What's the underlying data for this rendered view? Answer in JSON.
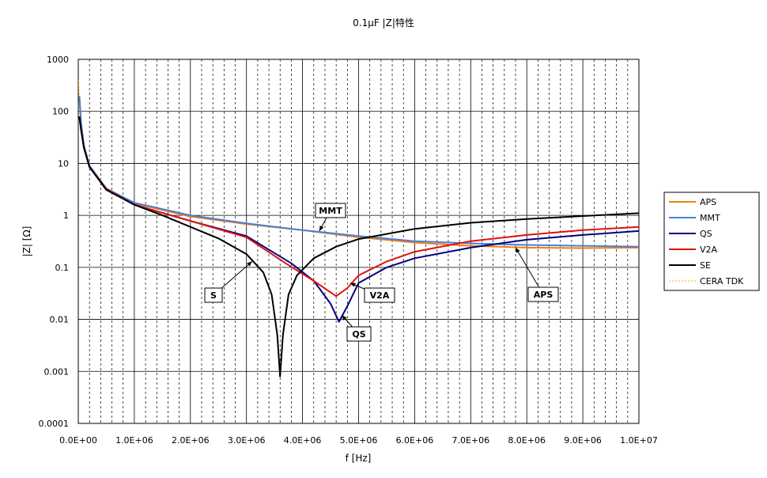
{
  "chart_data": {
    "type": "line",
    "title": "0.1μF |Z|特性",
    "xlabel": "f [Hz]",
    "ylabel": "|Z| [Ω]",
    "xscale": "linear",
    "yscale": "log",
    "xlim": [
      0,
      10000000
    ],
    "ylim": [
      0.0001,
      1000
    ],
    "x_ticks": [
      "0.0E+00",
      "1.0E+06",
      "2.0E+06",
      "3.0E+06",
      "4.0E+06",
      "5.0E+06",
      "6.0E+06",
      "7.0E+06",
      "8.0E+06",
      "9.0E+06",
      "1.0E+07"
    ],
    "y_ticks": [
      "1000",
      "100",
      "10",
      "1",
      "0.1",
      "0.01",
      "0.001",
      "0.0001"
    ],
    "grid": "on",
    "legend_position": "right",
    "series": [
      {
        "name": "APS",
        "color": "#f07e0e",
        "dashed": false,
        "points": [
          [
            20000,
            200
          ],
          [
            50000,
            60
          ],
          [
            100000,
            22
          ],
          [
            200000,
            9
          ],
          [
            500000,
            3.3
          ],
          [
            1000000,
            1.7
          ],
          [
            2000000,
            0.95
          ],
          [
            3000000,
            0.68
          ],
          [
            4000000,
            0.52
          ],
          [
            5000000,
            0.38
          ],
          [
            6000000,
            0.3
          ],
          [
            7000000,
            0.26
          ],
          [
            8000000,
            0.24
          ],
          [
            9000000,
            0.235
          ],
          [
            10000000,
            0.24
          ]
        ]
      },
      {
        "name": "MMT",
        "color": "#4a7fd9",
        "dashed": false,
        "points": [
          [
            20000,
            190
          ],
          [
            50000,
            60
          ],
          [
            100000,
            22
          ],
          [
            200000,
            9
          ],
          [
            500000,
            3.3
          ],
          [
            1000000,
            1.75
          ],
          [
            2000000,
            1.0
          ],
          [
            3000000,
            0.7
          ],
          [
            4000000,
            0.52
          ],
          [
            5000000,
            0.4
          ],
          [
            6000000,
            0.32
          ],
          [
            7000000,
            0.29
          ],
          [
            8000000,
            0.27
          ],
          [
            9000000,
            0.26
          ],
          [
            10000000,
            0.25
          ]
        ]
      },
      {
        "name": "QS",
        "color": "#000080",
        "dashed": false,
        "points": [
          [
            20000,
            80
          ],
          [
            50000,
            45
          ],
          [
            100000,
            20
          ],
          [
            200000,
            8.5
          ],
          [
            500000,
            3.2
          ],
          [
            1000000,
            1.6
          ],
          [
            2000000,
            0.78
          ],
          [
            3000000,
            0.4
          ],
          [
            3800000,
            0.12
          ],
          [
            4200000,
            0.055
          ],
          [
            4500000,
            0.02
          ],
          [
            4650000,
            0.009
          ],
          [
            4800000,
            0.018
          ],
          [
            5000000,
            0.05
          ],
          [
            5500000,
            0.1
          ],
          [
            6000000,
            0.15
          ],
          [
            7000000,
            0.24
          ],
          [
            8000000,
            0.34
          ],
          [
            9000000,
            0.42
          ],
          [
            10000000,
            0.5
          ]
        ]
      },
      {
        "name": "V2A",
        "color": "#e01010",
        "dashed": false,
        "points": [
          [
            20000,
            80
          ],
          [
            50000,
            45
          ],
          [
            100000,
            20
          ],
          [
            200000,
            8.5
          ],
          [
            500000,
            3.2
          ],
          [
            1000000,
            1.6
          ],
          [
            2000000,
            0.78
          ],
          [
            3000000,
            0.38
          ],
          [
            3700000,
            0.12
          ],
          [
            4200000,
            0.055
          ],
          [
            4600000,
            0.028
          ],
          [
            4800000,
            0.04
          ],
          [
            5000000,
            0.07
          ],
          [
            5500000,
            0.13
          ],
          [
            6000000,
            0.2
          ],
          [
            7000000,
            0.32
          ],
          [
            8000000,
            0.42
          ],
          [
            9000000,
            0.52
          ],
          [
            10000000,
            0.6
          ]
        ]
      },
      {
        "name": "SE",
        "color": "#000000",
        "dashed": false,
        "points": [
          [
            20000,
            80
          ],
          [
            50000,
            45
          ],
          [
            100000,
            20
          ],
          [
            200000,
            8.5
          ],
          [
            500000,
            3.1
          ],
          [
            1000000,
            1.6
          ],
          [
            1500000,
            1.0
          ],
          [
            2000000,
            0.6
          ],
          [
            2500000,
            0.36
          ],
          [
            3000000,
            0.18
          ],
          [
            3300000,
            0.08
          ],
          [
            3450000,
            0.03
          ],
          [
            3550000,
            0.005
          ],
          [
            3600000,
            0.0008
          ],
          [
            3650000,
            0.005
          ],
          [
            3750000,
            0.03
          ],
          [
            3900000,
            0.07
          ],
          [
            4200000,
            0.15
          ],
          [
            4600000,
            0.25
          ],
          [
            5000000,
            0.35
          ],
          [
            6000000,
            0.55
          ],
          [
            7000000,
            0.72
          ],
          [
            8000000,
            0.85
          ],
          [
            9000000,
            0.97
          ],
          [
            10000000,
            1.1
          ]
        ]
      },
      {
        "name": "CERA TDK",
        "color": "#f5b800",
        "dashed": true,
        "points": [
          [
            5000,
            400
          ],
          [
            20000,
            150
          ],
          [
            50000,
            55
          ],
          [
            100000,
            20
          ]
        ]
      }
    ],
    "annotations": [
      {
        "label": "MMT",
        "point": [
          4300000,
          0.5
        ]
      },
      {
        "label": "S",
        "point": [
          3100000,
          0.13
        ]
      },
      {
        "label": "V2A",
        "point": [
          4850000,
          0.05
        ]
      },
      {
        "label": "QS",
        "point": [
          4700000,
          0.012
        ]
      },
      {
        "label": "APS",
        "point": [
          7800000,
          0.24
        ]
      }
    ]
  }
}
